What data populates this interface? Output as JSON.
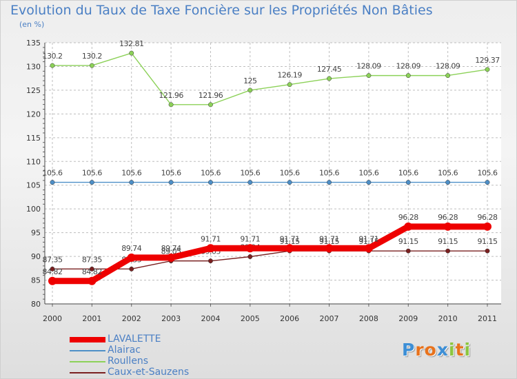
{
  "chart_data": {
    "type": "line",
    "title": "Evolution du Taux de Taxe Foncière sur les Propriétés Non Bâties",
    "ylabel": "(en %)",
    "xlabel": "",
    "ylim": [
      80,
      135
    ],
    "yticks": [
      80,
      85,
      90,
      95,
      100,
      105,
      110,
      115,
      120,
      125,
      130,
      135
    ],
    "categories": [
      "2000",
      "2001",
      "2002",
      "2003",
      "2004",
      "2005",
      "2006",
      "2007",
      "2008",
      "2009",
      "2010",
      "2011"
    ],
    "grid": "dashed-horizontal",
    "series": [
      {
        "name": "LAVALETTE",
        "color": "#ee0000",
        "values": [
          84.82,
          84.82,
          89.74,
          89.74,
          91.71,
          91.71,
          91.71,
          91.71,
          91.71,
          96.28,
          96.28,
          96.28
        ],
        "labels": [
          "84.82",
          "84.82",
          "89.74",
          "89.74",
          "91.71",
          "91.71",
          "91.71",
          "91.71",
          "91.71",
          "96.28",
          "96.28",
          "96.28"
        ]
      },
      {
        "name": "Alairac",
        "color": "#4d8fc7",
        "values": [
          105.6,
          105.6,
          105.6,
          105.6,
          105.6,
          105.6,
          105.6,
          105.6,
          105.6,
          105.6,
          105.6,
          105.6
        ],
        "labels": [
          "105.6",
          "105.6",
          "105.6",
          "105.6",
          "105.6",
          "105.6",
          "105.6",
          "105.6",
          "105.6",
          "105.6",
          "105.6",
          "105.6"
        ]
      },
      {
        "name": "Roullens",
        "color": "#8cd158",
        "values": [
          130.2,
          130.2,
          132.81,
          121.96,
          121.96,
          125,
          126.19,
          127.45,
          128.09,
          128.09,
          128.09,
          129.37
        ],
        "labels": [
          "130.2",
          "130.2",
          "132.81",
          "121.96",
          "121.96",
          "125",
          "126.19",
          "127.45",
          "128.09",
          "128.09",
          "128.09",
          "129.37"
        ]
      },
      {
        "name": "Caux-et-Sauzens",
        "color": "#7a2020",
        "values": [
          87.35,
          87.35,
          87.35,
          89.05,
          89.05,
          89.94,
          91.15,
          91.15,
          91.15,
          91.15,
          91.15,
          91.15
        ],
        "labels": [
          "87.35",
          "87.35",
          "87.35",
          "89.05",
          "89.05",
          "89.94",
          "91.15",
          "91.15",
          "91.15",
          "91.15",
          "91.15",
          "91.15"
        ]
      }
    ]
  },
  "branding": {
    "logo_letters": [
      "P",
      "r",
      "o",
      "x",
      "i",
      "t",
      "i"
    ],
    "logo_colors": [
      "#3d8fd6",
      "#e8721c",
      "#e8721c",
      "#3d8fd6",
      "#8cc63f",
      "#e8721c",
      "#8cc63f"
    ]
  }
}
